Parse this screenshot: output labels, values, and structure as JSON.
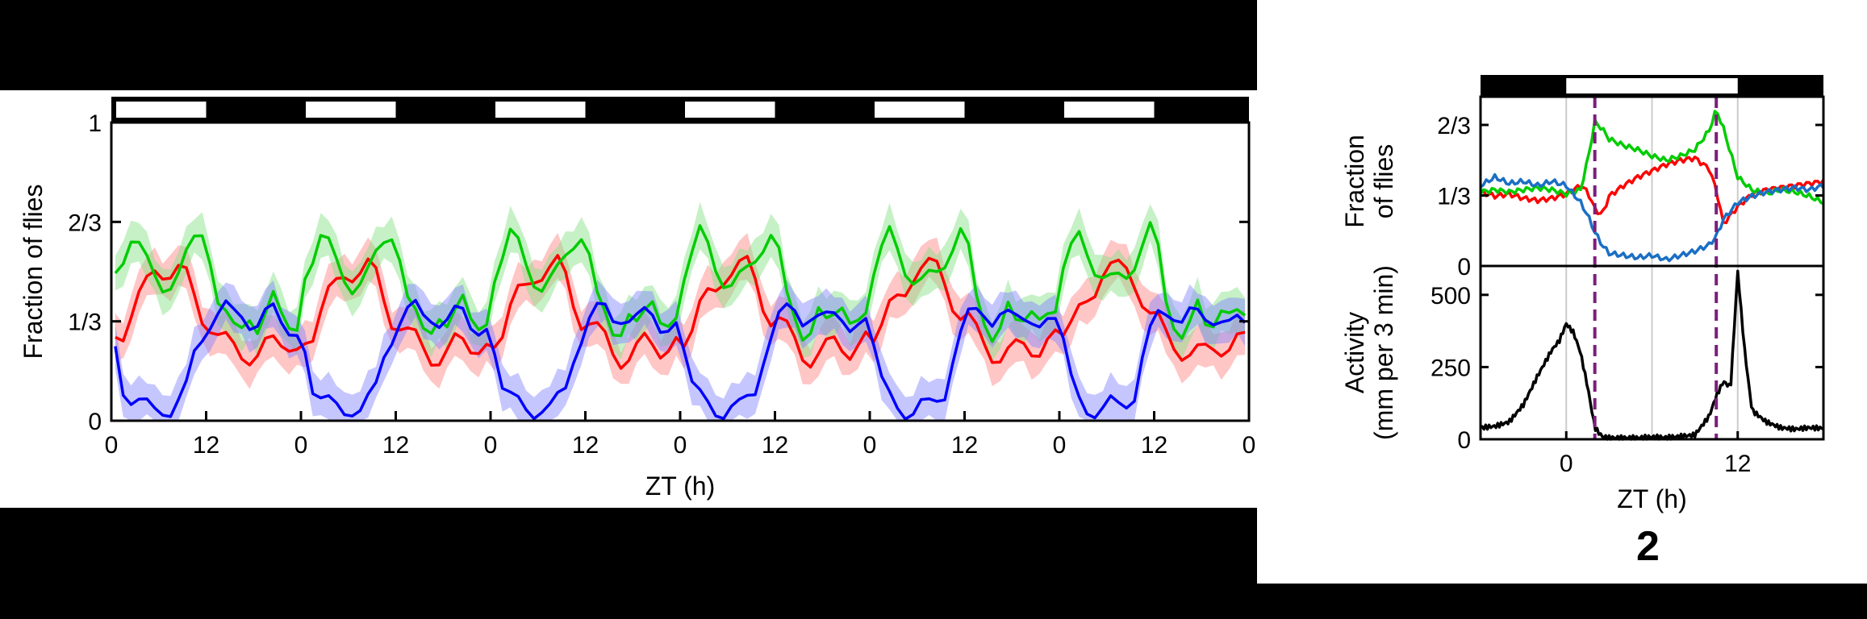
{
  "chart_data": [
    {
      "type": "line",
      "title": "",
      "xlabel": "ZT (h)",
      "ylabel": "Fraction of flies",
      "x_tick_labels": [
        "0",
        "12",
        "0",
        "12",
        "0",
        "12",
        "0",
        "12",
        "0",
        "12",
        "0",
        "12",
        "0"
      ],
      "y_ticks": [
        0,
        0.3333,
        0.6667,
        1
      ],
      "y_tick_labels": [
        "0",
        "1/3",
        "2/3",
        "1"
      ],
      "ylim": [
        0,
        1
      ],
      "xlim": [
        0,
        144
      ],
      "light_dark_bar": {
        "light_periods": [
          [
            0,
            12
          ],
          [
            24,
            36
          ],
          [
            48,
            60
          ],
          [
            72,
            84
          ],
          [
            96,
            108
          ],
          [
            120,
            132
          ]
        ],
        "light_color": "#ffffff",
        "dark_color": "#000000"
      },
      "day_template_x": [
        0,
        1,
        2,
        3,
        4,
        5,
        6,
        7,
        8,
        9,
        10,
        11,
        12,
        13,
        14,
        15,
        16,
        17,
        18,
        19,
        20,
        21,
        22,
        23
      ],
      "series": [
        {
          "color": "#ff0000",
          "band_color": "#ff8080",
          "day_values": [
            0.28,
            0.3,
            0.37,
            0.42,
            0.45,
            0.49,
            0.5,
            0.51,
            0.52,
            0.48,
            0.4,
            0.34,
            0.33,
            0.3,
            0.27,
            0.23,
            0.21,
            0.22,
            0.24,
            0.26,
            0.25,
            0.24,
            0.26,
            0.27
          ]
        },
        {
          "color": "#00cc00",
          "band_color": "#80e080",
          "day_values": [
            0.5,
            0.56,
            0.62,
            0.58,
            0.52,
            0.48,
            0.46,
            0.47,
            0.49,
            0.54,
            0.6,
            0.64,
            0.56,
            0.4,
            0.34,
            0.3,
            0.32,
            0.37,
            0.31,
            0.34,
            0.4,
            0.36,
            0.34,
            0.33
          ]
        },
        {
          "color": "#0000ff",
          "band_color": "#8080ff",
          "day_values": [
            0.26,
            0.12,
            0.07,
            0.05,
            0.04,
            0.04,
            0.05,
            0.04,
            0.06,
            0.1,
            0.22,
            0.29,
            0.34,
            0.36,
            0.37,
            0.35,
            0.36,
            0.34,
            0.33,
            0.35,
            0.36,
            0.33,
            0.32,
            0.31
          ]
        }
      ]
    },
    {
      "type": "line",
      "title": "",
      "xlabel": "",
      "ylabel": "Fraction of flies",
      "y_ticks": [
        0,
        0.3333,
        0.6667
      ],
      "y_tick_labels": [
        "0",
        "1/3",
        "2/3"
      ],
      "ylim": [
        0,
        0.8
      ],
      "xlim": [
        -6,
        18
      ],
      "light_dark_bar": {
        "light_periods": [
          [
            0,
            12
          ]
        ],
        "light_color": "#ffffff",
        "dark_color": "#000000"
      },
      "vertical_dashed_lines": [
        2,
        10.5
      ],
      "series": [
        {
          "color": "#ff0000",
          "x": [
            -6,
            -5,
            -4,
            -3,
            -2,
            -1,
            0,
            1,
            1.5,
            2,
            2.5,
            3,
            4,
            5,
            6,
            7,
            8,
            9,
            10,
            10.5,
            11,
            12,
            13,
            14,
            15,
            16,
            17,
            18
          ],
          "y": [
            0.35,
            0.33,
            0.34,
            0.32,
            0.31,
            0.32,
            0.34,
            0.38,
            0.35,
            0.27,
            0.24,
            0.33,
            0.38,
            0.42,
            0.45,
            0.48,
            0.5,
            0.51,
            0.46,
            0.36,
            0.2,
            0.28,
            0.34,
            0.36,
            0.37,
            0.38,
            0.39,
            0.4
          ]
        },
        {
          "color": "#00cc00",
          "x": [
            -6,
            -5,
            -4,
            -3,
            -2,
            -1,
            0,
            1,
            1.5,
            2,
            2.5,
            3,
            4,
            5,
            6,
            7,
            8,
            9,
            10,
            10.5,
            11,
            12,
            13,
            14,
            15,
            16,
            17,
            18
          ],
          "y": [
            0.35,
            0.36,
            0.35,
            0.36,
            0.37,
            0.36,
            0.34,
            0.36,
            0.5,
            0.68,
            0.65,
            0.6,
            0.57,
            0.55,
            0.52,
            0.5,
            0.52,
            0.55,
            0.64,
            0.74,
            0.65,
            0.42,
            0.36,
            0.34,
            0.36,
            0.35,
            0.33,
            0.3
          ]
        },
        {
          "color": "#1a6fc4",
          "x": [
            -6,
            -5,
            -4,
            -3,
            -2,
            -1,
            0,
            1,
            1.5,
            2,
            2.5,
            3,
            4,
            5,
            6,
            7,
            8,
            9,
            10,
            10.5,
            11,
            12,
            13,
            14,
            15,
            16,
            17,
            18
          ],
          "y": [
            0.38,
            0.42,
            0.39,
            0.4,
            0.38,
            0.4,
            0.38,
            0.3,
            0.24,
            0.16,
            0.1,
            0.06,
            0.05,
            0.04,
            0.05,
            0.03,
            0.05,
            0.07,
            0.1,
            0.14,
            0.22,
            0.3,
            0.33,
            0.35,
            0.36,
            0.37,
            0.36,
            0.38
          ]
        }
      ]
    },
    {
      "type": "line",
      "title": "",
      "xlabel": "ZT (h)",
      "ylabel": "Activity (mm per 3 min)",
      "ylabel_lines": [
        "Activity",
        "(mm per 3 min)"
      ],
      "y_ticks": [
        0,
        250,
        500
      ],
      "y_tick_labels": [
        "0",
        "250",
        "500"
      ],
      "x_ticks": [
        0,
        12
      ],
      "x_tick_labels": [
        "0",
        "12"
      ],
      "ylim": [
        0,
        600
      ],
      "xlim": [
        -6,
        18
      ],
      "vertical_dashed_lines": [
        2,
        10.5
      ],
      "series": [
        {
          "color": "#000000",
          "x": [
            -6,
            -5,
            -4,
            -3,
            -2,
            -1,
            -0.5,
            0,
            0.5,
            1,
            1.5,
            2,
            2.5,
            3,
            4,
            5,
            6,
            7,
            8,
            9,
            10,
            10.5,
            11,
            11.5,
            12,
            12.5,
            13,
            14,
            15,
            16,
            17,
            18
          ],
          "y": [
            40,
            45,
            60,
            120,
            220,
            310,
            340,
            400,
            370,
            300,
            180,
            40,
            10,
            5,
            5,
            5,
            8,
            6,
            10,
            15,
            80,
            150,
            200,
            180,
            580,
            300,
            100,
            60,
            40,
            35,
            40,
            38
          ]
        }
      ]
    }
  ],
  "panel_label": "2"
}
